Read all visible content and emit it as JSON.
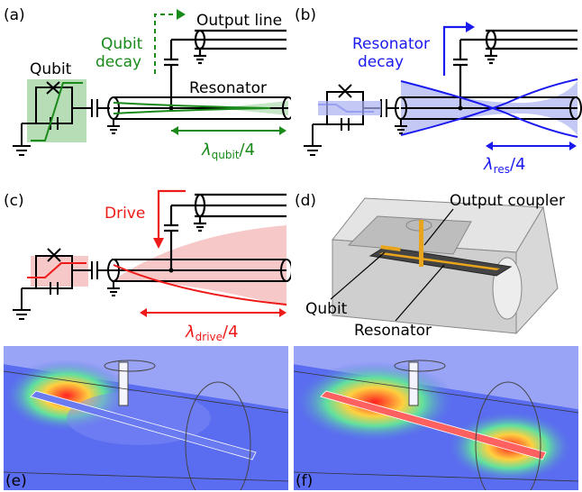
{
  "panels": {
    "a": {
      "label": "(a)",
      "output_line": "Output line",
      "qubit": "Qubit",
      "decay_line1": "Qubit",
      "decay_line2": "decay",
      "resonator": "Resonator",
      "lambda_symbol": "λ",
      "lambda_sub": "qubit",
      "lambda_tail": "/4"
    },
    "b": {
      "label": "(b)",
      "decay_line1": "Resonator",
      "decay_line2": "decay",
      "lambda_symbol": "λ",
      "lambda_sub": "res",
      "lambda_tail": "/4"
    },
    "c": {
      "label": "(c)",
      "drive": "Drive",
      "lambda_symbol": "λ",
      "lambda_sub": "drive",
      "lambda_tail": "/4"
    },
    "d": {
      "label": "(d)",
      "output_coupler": "Output coupler",
      "qubit": "Qubit",
      "resonator": "Resonator"
    },
    "e": {
      "label": "(e)"
    },
    "f": {
      "label": "(f)"
    }
  },
  "colors": {
    "qubit_green": "#1a8a1a",
    "resonator_blue": "#1a1aee",
    "drive_red": "#ee1a1a",
    "green_fill": "#9fd29f",
    "blue_fill": "#aab0f0",
    "red_fill": "#f4b0b0",
    "field_low": "#5a6cf0",
    "field_high": "#ff3030"
  }
}
